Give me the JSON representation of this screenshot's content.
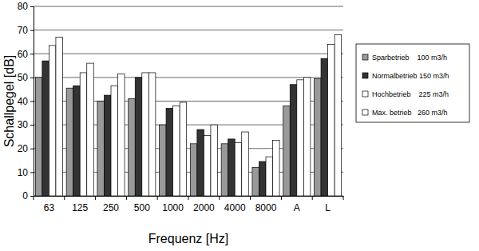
{
  "chart_data": {
    "type": "bar",
    "x_label": "Frequenz [Hz]",
    "y_label": "Schallpegel [dB]",
    "categories": [
      "63",
      "125",
      "250",
      "500",
      "1000",
      "2000",
      "4000",
      "8000",
      "A",
      "L"
    ],
    "series": [
      {
        "name": "Sparbetrieb    100 m3/h",
        "color": "#999999",
        "values": [
          50,
          45.5,
          40,
          41,
          30,
          22,
          22,
          12,
          38,
          49.5
        ]
      },
      {
        "name": "Normalbetrieb 150 m3/h",
        "color": "#333333",
        "values": [
          57,
          46.5,
          42.5,
          50,
          37,
          28,
          24,
          14.5,
          47,
          58
        ]
      },
      {
        "name": "Hochbetrieb    225 m3/h",
        "color": "#ffffff",
        "values": [
          63.5,
          52,
          46.5,
          52,
          38,
          25.5,
          22.5,
          16.5,
          49,
          64
        ]
      },
      {
        "name": "Max. betrieb   260 m3/h",
        "color": "#ffffff",
        "values": [
          67,
          56,
          51.5,
          52,
          39.5,
          30,
          27,
          23.5,
          50,
          68
        ]
      }
    ],
    "ylim": [
      0,
      80
    ],
    "yticks": [
      0,
      10,
      20,
      30,
      40,
      50,
      60,
      70,
      80
    ],
    "grid": true,
    "legend": "right"
  }
}
